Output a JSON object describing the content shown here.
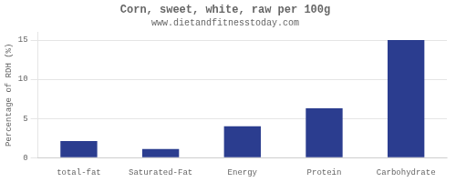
{
  "chart_data": {
    "type": "bar",
    "title": "Corn, sweet, white, raw per 100g",
    "subtitle": "www.dietandfitnesstoday.com",
    "categories": [
      "total-fat",
      "Saturated-Fat",
      "Energy",
      "Protein",
      "Carbohydrate"
    ],
    "values": [
      2.1,
      1.1,
      4.0,
      6.3,
      15.0
    ],
    "color": "#2b3d8f",
    "ylabel": "Percentage of RDH (%)",
    "ylim": [
      0,
      16
    ],
    "yticks": [
      0,
      5,
      10,
      15
    ],
    "grid": true
  }
}
